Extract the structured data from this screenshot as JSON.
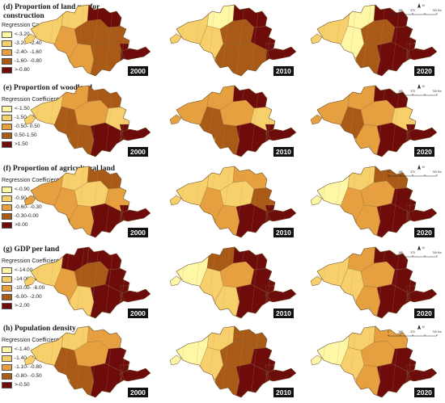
{
  "panels": [
    {
      "title": "(d) Proportion of land use for construction",
      "legend_title": "Regression Coefficient",
      "classes": [
        "<-3.20",
        "-3.20- -2.40",
        "-2.40- -1.60",
        "-1.60- -0.80",
        ">-0.80"
      ],
      "years": [
        "2000",
        "2010",
        "2020"
      ]
    },
    {
      "title": "(e)  Proportion of woodland",
      "legend_title": "Regression Coefficient",
      "classes": [
        "<-1.50",
        "-1.50- -0.50",
        "-0.50- 0.50",
        "0.50-1.50",
        ">1.50"
      ],
      "years": [
        "2000",
        "2010",
        "2020"
      ]
    },
    {
      "title": "(f) Proportion of agricultural land",
      "legend_title": "Regression Coefficient",
      "classes": [
        "<-0.90",
        "-0.90- -0.60",
        "-0.60- -0.30",
        "-0.30-0.00",
        ">0.00"
      ],
      "years": [
        "2000",
        "2010",
        "2020"
      ]
    },
    {
      "title": "(g)  GDP per land",
      "legend_title": "Regression Coefficient",
      "classes": [
        "<-14.00",
        "-14.00- -10.00",
        "-10.00- -6.00",
        "-6.00- -2.00",
        ">-2.00"
      ],
      "years": [
        "2000",
        "2010",
        "2020"
      ]
    },
    {
      "title": "(h)  Population density",
      "legend_title": "Regression Coefficient",
      "classes": [
        "<-1.40",
        "-1.40- -1.10",
        "-1.10- -0.80",
        "-0.80- -0.50",
        ">-0.50"
      ],
      "years": [
        "2000",
        "2010",
        "2020"
      ]
    }
  ],
  "scale": {
    "ticks": [
      "0",
      "185",
      "370",
      "",
      "740 Km"
    ],
    "north": "N"
  },
  "palette": [
    "#fdf7a6",
    "#f7cf6b",
    "#e6a040",
    "#a85a16",
    "#6e0c0c"
  ]
}
